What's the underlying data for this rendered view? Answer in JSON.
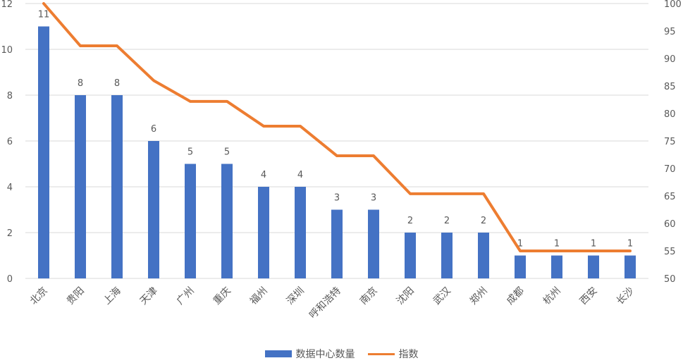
{
  "chart_data": {
    "type": "bar",
    "categories": [
      "北京",
      "贵阳",
      "上海",
      "天津",
      "广州",
      "重庆",
      "福州",
      "深圳",
      "呼和浩特",
      "南京",
      "沈阳",
      "武汉",
      "郑州",
      "成都",
      "杭州",
      "西安",
      "长沙"
    ],
    "series": [
      {
        "name": "数据中心数量",
        "type": "bar",
        "axis": "left",
        "color": "#4472C4",
        "values": [
          11,
          8,
          8,
          6,
          5,
          5,
          4,
          4,
          3,
          3,
          2,
          2,
          2,
          1,
          1,
          1,
          1
        ]
      },
      {
        "name": "指数",
        "type": "line",
        "axis": "right",
        "color": "#ED7D31",
        "values": [
          100,
          92.3,
          92.3,
          86,
          82.2,
          82.2,
          77.7,
          77.7,
          72.3,
          72.3,
          65.4,
          65.4,
          65.4,
          55,
          55,
          55,
          55
        ]
      }
    ],
    "ylim": [
      0,
      12
    ],
    "yticks": [
      0,
      2,
      4,
      6,
      8,
      10,
      12
    ],
    "y2lim": [
      50,
      100
    ],
    "y2ticks": [
      50,
      55,
      60,
      65,
      70,
      75,
      80,
      85,
      90,
      95,
      100
    ],
    "grid": true,
    "legend_position": "bottom"
  }
}
